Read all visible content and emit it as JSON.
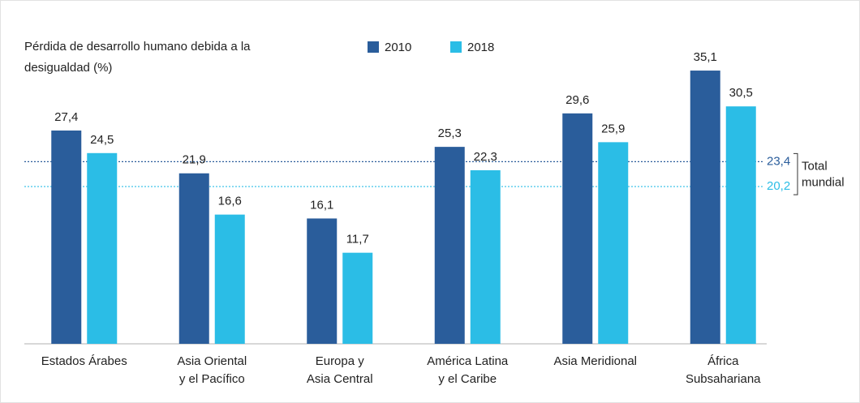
{
  "chart_data": {
    "type": "bar",
    "title": [
      "Pérdida de desarrollo humano debida a la",
      "desigualdad (%)"
    ],
    "categories": [
      [
        "Estados Árabes"
      ],
      [
        "Asia Oriental",
        "y el Pacífico"
      ],
      [
        "Europa y",
        "Asia Central"
      ],
      [
        "América Latina",
        "y el Caribe"
      ],
      [
        "Asia Meridional"
      ],
      [
        "África",
        "Subsahariana"
      ]
    ],
    "series": [
      {
        "name": "2010",
        "color": "#2a5d9b",
        "values": [
          27.4,
          21.9,
          16.1,
          25.3,
          29.6,
          35.1
        ],
        "value_labels": [
          "27,4",
          "21,9",
          "16,1",
          "25,3",
          "29,6",
          "35,1"
        ]
      },
      {
        "name": "2018",
        "color": "#2bbde6",
        "values": [
          24.5,
          16.6,
          11.7,
          22.3,
          25.9,
          30.5
        ],
        "value_labels": [
          "24,5",
          "16,6",
          "11,7",
          "22,3",
          "25,9",
          "30,5"
        ]
      }
    ],
    "reference_lines": [
      {
        "value": 23.4,
        "value_label": "23,4",
        "color": "#2a5d9b"
      },
      {
        "value": 20.2,
        "value_label": "20,2",
        "color": "#2bbde6"
      }
    ],
    "reference_label": [
      "Total",
      "mundial"
    ]
  }
}
